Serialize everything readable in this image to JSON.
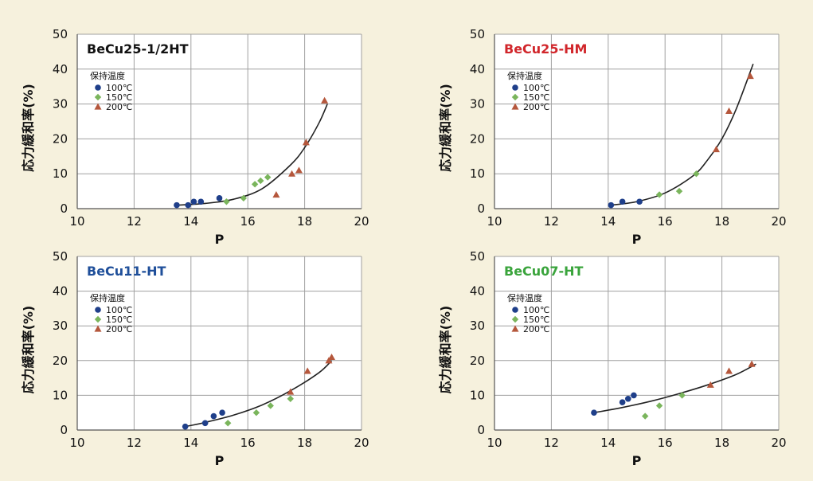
{
  "colors": {
    "background": "#f6f1dd",
    "plot_bg": "#ffffff",
    "grid": "#a0a0a0",
    "curve": "#222222",
    "series_100": "#1f3f8a",
    "series_150": "#7ab55c",
    "series_200": "#b5573c"
  },
  "chart_data": [
    {
      "type": "scatter",
      "title": "BeCu25-1/2HT",
      "title_color": "#111111",
      "xlabel": "P",
      "ylabel": "応力緩和率(%)",
      "xlim": [
        10,
        20
      ],
      "ylim": [
        0,
        50
      ],
      "xticks": [
        "10",
        "12",
        "14",
        "16",
        "18",
        "20"
      ],
      "yticks": [
        "0",
        "10",
        "20",
        "30",
        "40",
        "50"
      ],
      "grid": true,
      "legend_title": "保持温度",
      "series": [
        {
          "name": "100℃",
          "marker": "circle",
          "color": "#1f3f8a",
          "points": [
            [
              13.5,
              1
            ],
            [
              13.9,
              1
            ],
            [
              14.1,
              2
            ],
            [
              14.35,
              2
            ],
            [
              15.0,
              3
            ]
          ]
        },
        {
          "name": "150℃",
          "marker": "diamond",
          "color": "#7ab55c",
          "points": [
            [
              15.25,
              2
            ],
            [
              15.85,
              3
            ],
            [
              16.25,
              7
            ],
            [
              16.45,
              8
            ],
            [
              16.7,
              9
            ]
          ]
        },
        {
          "name": "200℃",
          "marker": "triangle",
          "color": "#b5573c",
          "points": [
            [
              17.0,
              4
            ],
            [
              17.55,
              10
            ],
            [
              17.8,
              11
            ],
            [
              18.05,
              19
            ],
            [
              18.7,
              31
            ]
          ]
        }
      ],
      "fit_curve": {
        "x": [
          13.5,
          14.5,
          15.5,
          16.5,
          17.5,
          18.0,
          18.5,
          18.8
        ],
        "y": [
          1.0,
          1.5,
          2.7,
          5.7,
          12.5,
          17.5,
          24.5,
          30.0
        ]
      }
    },
    {
      "type": "scatter",
      "title": "BeCu25-HM",
      "title_color": "#d1262b",
      "xlabel": "P",
      "ylabel": "応力緩和率(%)",
      "xlim": [
        10,
        20
      ],
      "ylim": [
        0,
        50
      ],
      "xticks": [
        "10",
        "12",
        "14",
        "16",
        "18",
        "20"
      ],
      "yticks": [
        "0",
        "10",
        "20",
        "30",
        "40",
        "50"
      ],
      "grid": true,
      "legend_title": "保持温度",
      "series": [
        {
          "name": "100℃",
          "marker": "circle",
          "color": "#1f3f8a",
          "points": [
            [
              14.1,
              1
            ],
            [
              14.5,
              2
            ],
            [
              15.1,
              2
            ]
          ]
        },
        {
          "name": "150℃",
          "marker": "diamond",
          "color": "#7ab55c",
          "points": [
            [
              15.8,
              4
            ],
            [
              16.5,
              5
            ],
            [
              17.1,
              10
            ]
          ]
        },
        {
          "name": "200℃",
          "marker": "triangle",
          "color": "#b5573c",
          "points": [
            [
              17.8,
              17
            ],
            [
              18.25,
              28
            ],
            [
              19.0,
              38
            ]
          ]
        }
      ],
      "fit_curve": {
        "x": [
          14.1,
          15.0,
          16.0,
          17.0,
          17.5,
          18.0,
          18.5,
          19.1
        ],
        "y": [
          1.0,
          2.0,
          4.5,
          9.5,
          14.0,
          20.0,
          28.5,
          41.5
        ]
      }
    },
    {
      "type": "scatter",
      "title": "BeCu11-HT",
      "title_color": "#1f4f9a",
      "xlabel": "P",
      "ylabel": "応力緩和率(%)",
      "xlim": [
        10,
        20
      ],
      "ylim": [
        0,
        50
      ],
      "xticks": [
        "10",
        "12",
        "14",
        "16",
        "18",
        "20"
      ],
      "yticks": [
        "0",
        "10",
        "20",
        "30",
        "40",
        "50"
      ],
      "grid": true,
      "legend_title": "保持温度",
      "series": [
        {
          "name": "100℃",
          "marker": "circle",
          "color": "#1f3f8a",
          "points": [
            [
              13.8,
              1
            ],
            [
              14.5,
              2
            ],
            [
              14.8,
              4
            ],
            [
              15.1,
              5
            ]
          ]
        },
        {
          "name": "150℃",
          "marker": "diamond",
          "color": "#7ab55c",
          "points": [
            [
              15.3,
              2
            ],
            [
              16.3,
              5
            ],
            [
              16.8,
              7
            ],
            [
              17.5,
              9
            ]
          ]
        },
        {
          "name": "200℃",
          "marker": "triangle",
          "color": "#b5573c",
          "points": [
            [
              17.5,
              11
            ],
            [
              18.1,
              17
            ],
            [
              18.85,
              20
            ],
            [
              18.95,
              21
            ]
          ]
        }
      ],
      "fit_curve": {
        "x": [
          13.8,
          14.5,
          15.5,
          16.5,
          17.5,
          18.5,
          18.95
        ],
        "y": [
          1.0,
          2.2,
          4.3,
          7.2,
          11.3,
          16.5,
          20.0
        ]
      }
    },
    {
      "type": "scatter",
      "title": "BeCu07-HT",
      "title_color": "#3aa43c",
      "xlabel": "P",
      "ylabel": "応力緩和率(%)",
      "xlim": [
        10,
        20
      ],
      "ylim": [
        0,
        50
      ],
      "xticks": [
        "10",
        "12",
        "14",
        "16",
        "18",
        "20"
      ],
      "yticks": [
        "0",
        "10",
        "20",
        "30",
        "40",
        "50"
      ],
      "grid": true,
      "legend_title": "保持温度",
      "series": [
        {
          "name": "100℃",
          "marker": "circle",
          "color": "#1f3f8a",
          "points": [
            [
              13.5,
              5
            ],
            [
              14.5,
              8
            ],
            [
              14.7,
              9
            ],
            [
              14.9,
              10
            ]
          ]
        },
        {
          "name": "150℃",
          "marker": "diamond",
          "color": "#7ab55c",
          "points": [
            [
              15.3,
              4
            ],
            [
              15.8,
              7
            ],
            [
              16.6,
              10
            ]
          ]
        },
        {
          "name": "200℃",
          "marker": "triangle",
          "color": "#b5573c",
          "points": [
            [
              17.6,
              13
            ],
            [
              18.25,
              17
            ],
            [
              19.05,
              19
            ]
          ]
        }
      ],
      "fit_curve": {
        "x": [
          13.5,
          14.5,
          15.5,
          16.5,
          17.5,
          18.5,
          19.2
        ],
        "y": [
          5.0,
          6.5,
          8.3,
          10.5,
          13.0,
          16.0,
          19.0
        ]
      }
    }
  ]
}
